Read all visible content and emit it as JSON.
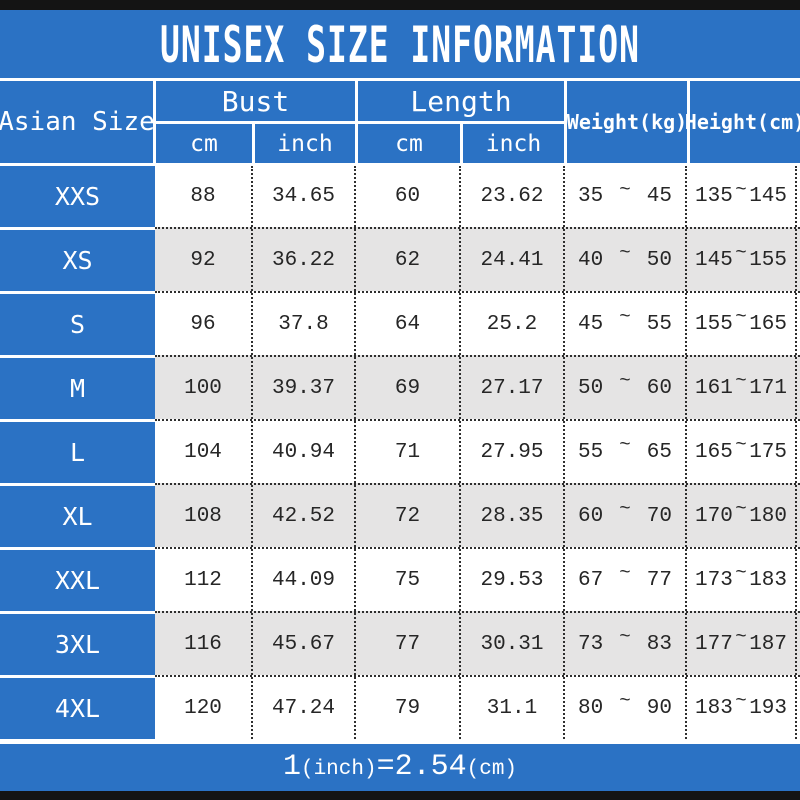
{
  "title": "UNISEX SIZE INFORMATION",
  "colors": {
    "blue": "#2b72c4",
    "alt": "#e5e4e4",
    "bar": "#141414",
    "text": "#262626"
  },
  "table": {
    "size_header": "Asian Size",
    "groups": [
      {
        "label": "Bust",
        "sub": [
          "cm",
          "inch"
        ]
      },
      {
        "label": "Length",
        "sub": [
          "cm",
          "inch"
        ]
      }
    ],
    "weight_header": "Weight(kg)",
    "height_header": "Height(cm)",
    "tilde": "~",
    "rows": [
      {
        "size": "XXS",
        "bust_cm": "88",
        "bust_inch": "34.65",
        "length_cm": "60",
        "length_inch": "23.62",
        "weight": [
          "35",
          "45"
        ],
        "height": [
          "135",
          "145"
        ]
      },
      {
        "size": "XS",
        "bust_cm": "92",
        "bust_inch": "36.22",
        "length_cm": "62",
        "length_inch": "24.41",
        "weight": [
          "40",
          "50"
        ],
        "height": [
          "145",
          "155"
        ]
      },
      {
        "size": "S",
        "bust_cm": "96",
        "bust_inch": "37.8",
        "length_cm": "64",
        "length_inch": "25.2",
        "weight": [
          "45",
          "55"
        ],
        "height": [
          "155",
          "165"
        ]
      },
      {
        "size": "M",
        "bust_cm": "100",
        "bust_inch": "39.37",
        "length_cm": "69",
        "length_inch": "27.17",
        "weight": [
          "50",
          "60"
        ],
        "height": [
          "161",
          "171"
        ]
      },
      {
        "size": "L",
        "bust_cm": "104",
        "bust_inch": "40.94",
        "length_cm": "71",
        "length_inch": "27.95",
        "weight": [
          "55",
          "65"
        ],
        "height": [
          "165",
          "175"
        ]
      },
      {
        "size": "XL",
        "bust_cm": "108",
        "bust_inch": "42.52",
        "length_cm": "72",
        "length_inch": "28.35",
        "weight": [
          "60",
          "70"
        ],
        "height": [
          "170",
          "180"
        ]
      },
      {
        "size": "XXL",
        "bust_cm": "112",
        "bust_inch": "44.09",
        "length_cm": "75",
        "length_inch": "29.53",
        "weight": [
          "67",
          "77"
        ],
        "height": [
          "173",
          "183"
        ]
      },
      {
        "size": "3XL",
        "bust_cm": "116",
        "bust_inch": "45.67",
        "length_cm": "77",
        "length_inch": "30.31",
        "weight": [
          "73",
          "83"
        ],
        "height": [
          "177",
          "187"
        ]
      },
      {
        "size": "4XL",
        "bust_cm": "120",
        "bust_inch": "47.24",
        "length_cm": "79",
        "length_inch": "31.1",
        "weight": [
          "80",
          "90"
        ],
        "height": [
          "183",
          "193"
        ]
      }
    ]
  },
  "footer": {
    "segments": [
      {
        "t": "1"
      },
      {
        "t": "(inch)"
      },
      {
        "t": "=2.54"
      },
      {
        "t": "(cm)"
      }
    ]
  },
  "chart_data": {
    "type": "table",
    "title": "UNISEX SIZE INFORMATION",
    "columns": [
      "Asian Size",
      "Bust cm",
      "Bust inch",
      "Length cm",
      "Length inch",
      "Weight(kg)",
      "Height(cm)"
    ],
    "rows": [
      [
        "XXS",
        88,
        34.65,
        60,
        23.62,
        "35~45",
        "135~145"
      ],
      [
        "XS",
        92,
        36.22,
        62,
        24.41,
        "40~50",
        "145~155"
      ],
      [
        "S",
        96,
        37.8,
        64,
        25.2,
        "45~55",
        "155~165"
      ],
      [
        "M",
        100,
        39.37,
        69,
        27.17,
        "50~60",
        "161~171"
      ],
      [
        "L",
        104,
        40.94,
        71,
        27.95,
        "55~65",
        "165~175"
      ],
      [
        "XL",
        108,
        42.52,
        72,
        28.35,
        "60~70",
        "170~180"
      ],
      [
        "XXL",
        112,
        44.09,
        75,
        29.53,
        "67~77",
        "173~183"
      ],
      [
        "3XL",
        116,
        45.67,
        77,
        30.31,
        "73~83",
        "177~187"
      ],
      [
        "4XL",
        120,
        47.24,
        79,
        31.1,
        "80~90",
        "183~193"
      ]
    ],
    "note": "1(inch)=2.54(cm)"
  }
}
